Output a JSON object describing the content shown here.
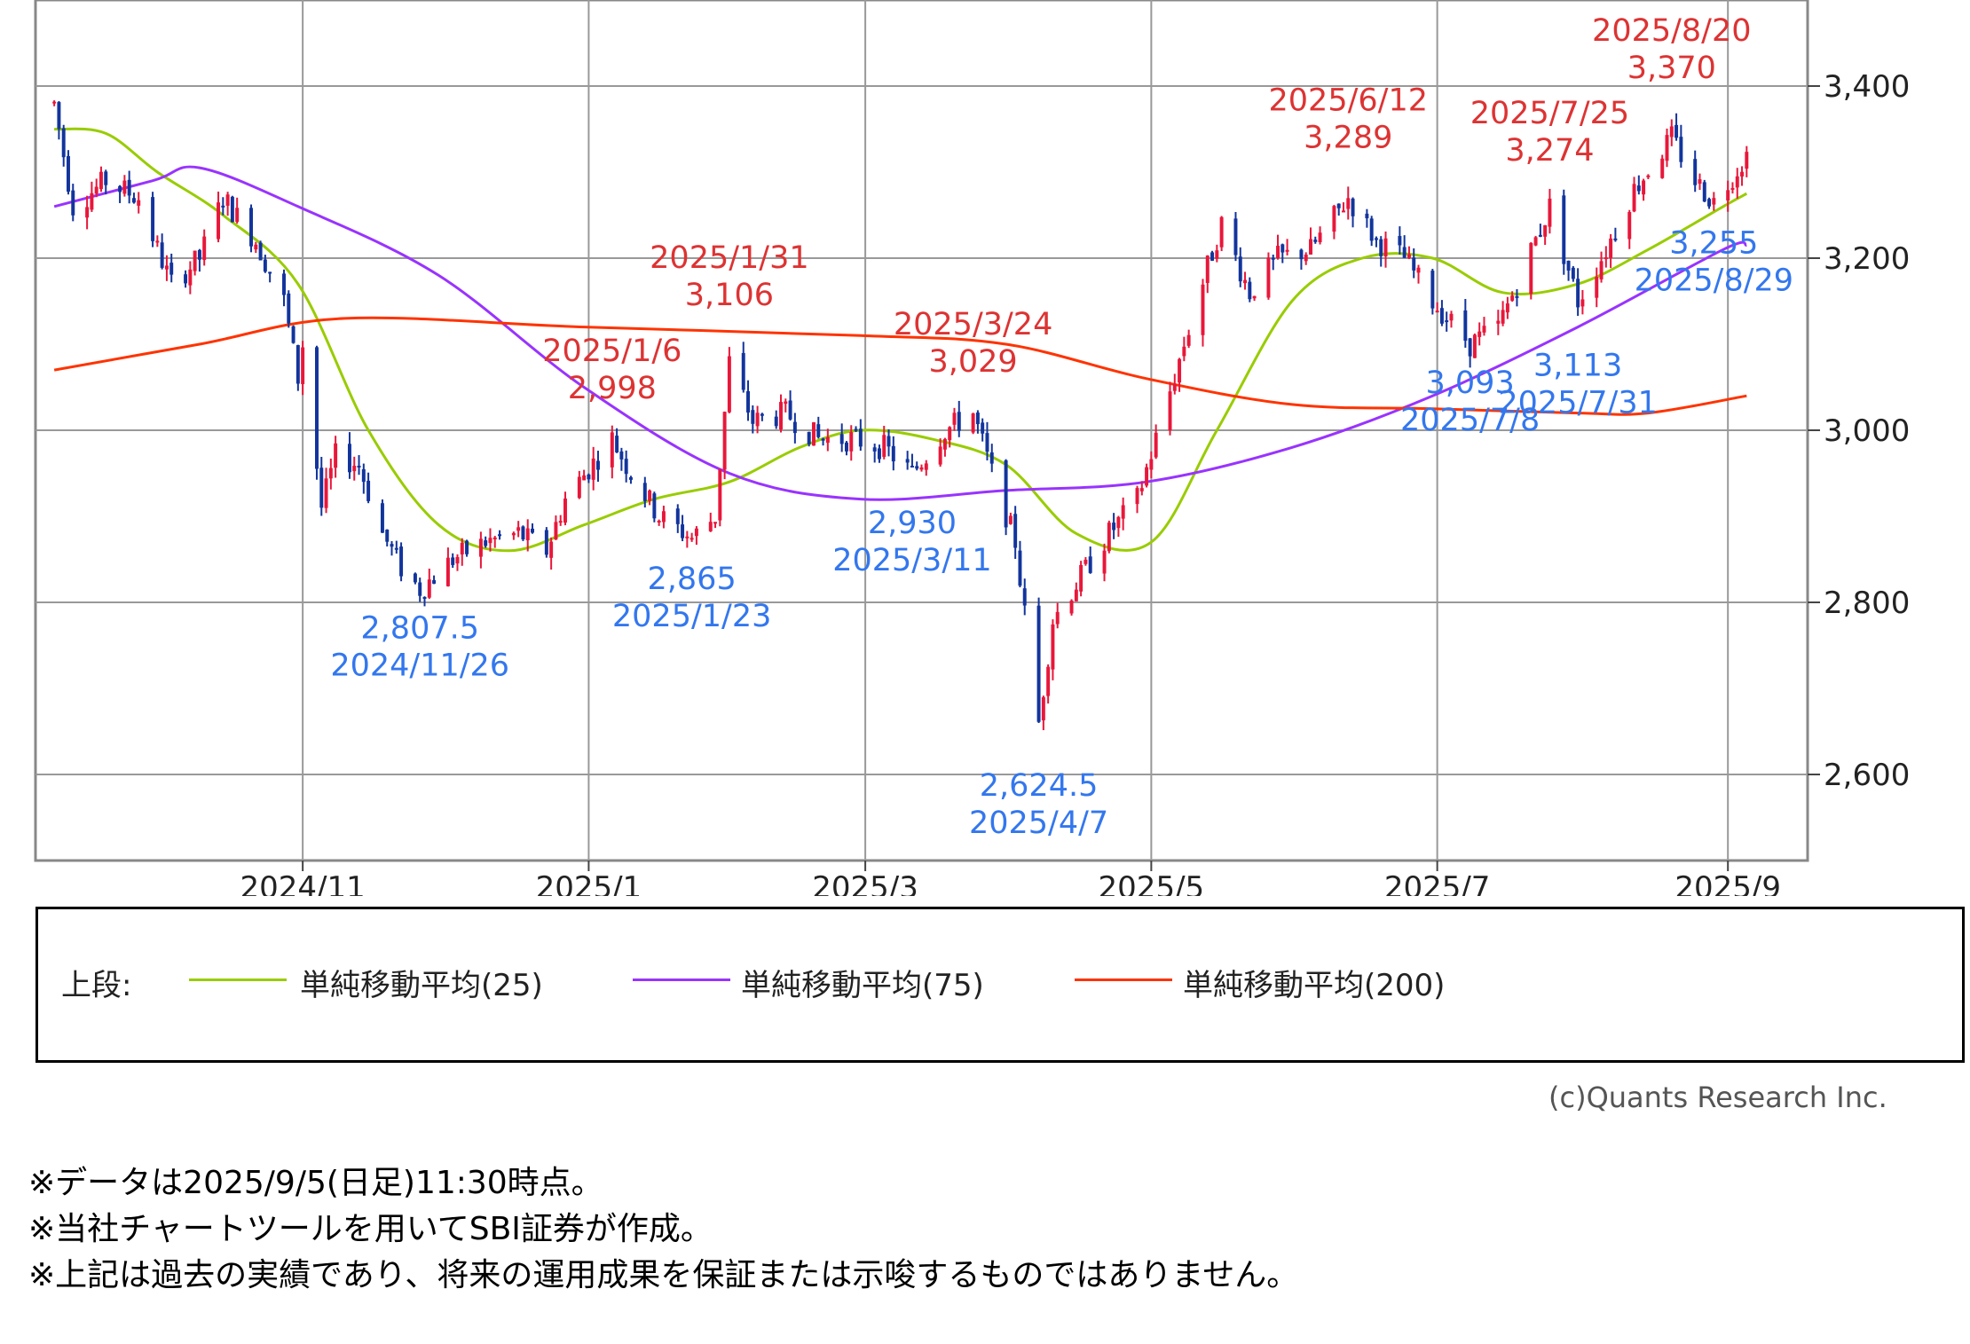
{
  "chart_data": {
    "type": "candlestick",
    "ylim": [
      2500,
      3500
    ],
    "yticks": [
      {
        "value": 2600,
        "label": "2,600"
      },
      {
        "value": 2800,
        "label": "2,800"
      },
      {
        "value": 3000,
        "label": "3,000"
      },
      {
        "value": 3200,
        "label": "3,200"
      },
      {
        "value": 3400,
        "label": "3,400"
      }
    ],
    "xlim": [
      "2024-09-05",
      "2025-09-18"
    ],
    "xticks": [
      {
        "date": "2024-11-01",
        "label": "2024/11"
      },
      {
        "date": "2025-01-01",
        "label": "2025/1"
      },
      {
        "date": "2025-03-01",
        "label": "2025/3"
      },
      {
        "date": "2025-05-01",
        "label": "2025/5"
      },
      {
        "date": "2025-07-01",
        "label": "2025/7"
      },
      {
        "date": "2025-09-01",
        "label": "2025/9"
      }
    ],
    "grid": true,
    "price_path": [
      [
        "2024-09-09",
        3380
      ],
      [
        "2024-09-13",
        3260
      ],
      [
        "2024-09-20",
        3290
      ],
      [
        "2024-09-27",
        3270
      ],
      [
        "2024-10-01",
        3210
      ],
      [
        "2024-10-04",
        3170
      ],
      [
        "2024-10-10",
        3200
      ],
      [
        "2024-10-15",
        3270
      ],
      [
        "2024-10-22",
        3220
      ],
      [
        "2024-10-28",
        3150
      ],
      [
        "2024-10-31",
        3060
      ],
      [
        "2024-11-01",
        3100
      ],
      [
        "2024-11-05",
        2910
      ],
      [
        "2024-11-08",
        2970
      ],
      [
        "2024-11-13",
        2960
      ],
      [
        "2024-11-18",
        2880
      ],
      [
        "2024-11-22",
        2840
      ],
      [
        "2024-11-26",
        2815
      ],
      [
        "2024-12-03",
        2850
      ],
      [
        "2024-12-10",
        2870
      ],
      [
        "2024-12-17",
        2880
      ],
      [
        "2024-12-23",
        2860
      ],
      [
        "2024-12-27",
        2920
      ],
      [
        "2025-01-06",
        2990
      ],
      [
        "2025-01-10",
        2950
      ],
      [
        "2025-01-16",
        2900
      ],
      [
        "2025-01-23",
        2875
      ],
      [
        "2025-01-28",
        2900
      ],
      [
        "2025-01-31",
        3080
      ],
      [
        "2025-02-05",
        3010
      ],
      [
        "2025-02-12",
        3020
      ],
      [
        "2025-02-19",
        2990
      ],
      [
        "2025-02-26",
        2990
      ],
      [
        "2025-03-05",
        2980
      ],
      [
        "2025-03-11",
        2950
      ],
      [
        "2025-03-18",
        3000
      ],
      [
        "2025-03-24",
        3020
      ],
      [
        "2025-03-28",
        2950
      ],
      [
        "2025-04-02",
        2870
      ],
      [
        "2025-04-07",
        2660
      ],
      [
        "2025-04-10",
        2780
      ],
      [
        "2025-04-16",
        2830
      ],
      [
        "2025-04-22",
        2880
      ],
      [
        "2025-04-28",
        2920
      ],
      [
        "2025-05-02",
        2990
      ],
      [
        "2025-05-08",
        3100
      ],
      [
        "2025-05-13",
        3190
      ],
      [
        "2025-05-16",
        3240
      ],
      [
        "2025-05-22",
        3160
      ],
      [
        "2025-05-28",
        3200
      ],
      [
        "2025-06-04",
        3210
      ],
      [
        "2025-06-12",
        3270
      ],
      [
        "2025-06-18",
        3220
      ],
      [
        "2025-06-24",
        3200
      ],
      [
        "2025-06-30",
        3150
      ],
      [
        "2025-07-08",
        3100
      ],
      [
        "2025-07-14",
        3120
      ],
      [
        "2025-07-18",
        3170
      ],
      [
        "2025-07-25",
        3260
      ],
      [
        "2025-07-31",
        3150
      ],
      [
        "2025-08-06",
        3210
      ],
      [
        "2025-08-12",
        3280
      ],
      [
        "2025-08-20",
        3340
      ],
      [
        "2025-08-25",
        3290
      ],
      [
        "2025-08-29",
        3265
      ],
      [
        "2025-09-05",
        3320
      ]
    ],
    "series": [
      {
        "name": "単純移動平均(25)",
        "color": "#99cc00",
        "points": [
          [
            "2024-09-09",
            3350
          ],
          [
            "2024-09-20",
            3345
          ],
          [
            "2024-10-01",
            3300
          ],
          [
            "2024-10-15",
            3250
          ],
          [
            "2024-10-31",
            3170
          ],
          [
            "2024-11-15",
            3000
          ],
          [
            "2024-11-30",
            2890
          ],
          [
            "2024-12-15",
            2860
          ],
          [
            "2024-12-31",
            2890
          ],
          [
            "2025-01-15",
            2920
          ],
          [
            "2025-01-31",
            2940
          ],
          [
            "2025-02-15",
            2980
          ],
          [
            "2025-02-28",
            3000
          ],
          [
            "2025-03-15",
            2990
          ],
          [
            "2025-03-31",
            2960
          ],
          [
            "2025-04-15",
            2880
          ],
          [
            "2025-05-01",
            2870
          ],
          [
            "2025-05-15",
            3000
          ],
          [
            "2025-05-31",
            3150
          ],
          [
            "2025-06-15",
            3200
          ],
          [
            "2025-06-30",
            3200
          ],
          [
            "2025-07-15",
            3160
          ],
          [
            "2025-07-31",
            3170
          ],
          [
            "2025-08-15",
            3210
          ],
          [
            "2025-08-31",
            3260
          ],
          [
            "2025-09-05",
            3275
          ]
        ]
      },
      {
        "name": "単純移動平均(75)",
        "color": "#9933ff",
        "points": [
          [
            "2024-09-09",
            3260
          ],
          [
            "2024-09-30",
            3290
          ],
          [
            "2024-10-10",
            3305
          ],
          [
            "2024-10-31",
            3260
          ],
          [
            "2024-11-30",
            3180
          ],
          [
            "2024-12-31",
            3050
          ],
          [
            "2025-01-31",
            2950
          ],
          [
            "2025-02-28",
            2920
          ],
          [
            "2025-03-31",
            2930
          ],
          [
            "2025-04-30",
            2940
          ],
          [
            "2025-05-31",
            2980
          ],
          [
            "2025-06-30",
            3040
          ],
          [
            "2025-07-31",
            3120
          ],
          [
            "2025-08-31",
            3210
          ],
          [
            "2025-09-05",
            3215
          ]
        ]
      },
      {
        "name": "単純移動平均(200)",
        "color": "#ff3300",
        "points": [
          [
            "2024-09-09",
            3070
          ],
          [
            "2024-10-10",
            3100
          ],
          [
            "2024-11-10",
            3130
          ],
          [
            "2024-12-31",
            3120
          ],
          [
            "2025-02-28",
            3110
          ],
          [
            "2025-03-31",
            3100
          ],
          [
            "2025-04-30",
            3060
          ],
          [
            "2025-05-31",
            3030
          ],
          [
            "2025-06-30",
            3025
          ],
          [
            "2025-07-31",
            3020
          ],
          [
            "2025-08-15",
            3020
          ],
          [
            "2025-09-05",
            3040
          ]
        ]
      }
    ],
    "annotations": [
      {
        "kind": "high",
        "date": "2025/1/6",
        "value": "2,998",
        "at": [
          "2025-01-06",
          2998
        ]
      },
      {
        "kind": "high",
        "date": "2025/1/31",
        "value": "3,106",
        "at": [
          "2025-01-31",
          3106
        ]
      },
      {
        "kind": "high",
        "date": "2025/3/24",
        "value": "3,029",
        "at": [
          "2025-03-24",
          3029
        ]
      },
      {
        "kind": "high",
        "date": "2025/6/12",
        "value": "3,289",
        "at": [
          "2025-06-12",
          3289
        ]
      },
      {
        "kind": "high",
        "date": "2025/7/25",
        "value": "3,274",
        "at": [
          "2025-07-25",
          3274
        ]
      },
      {
        "kind": "high",
        "date": "2025/8/20",
        "value": "3,370",
        "at": [
          "2025-08-20",
          3370
        ]
      },
      {
        "kind": "low",
        "date": "2024/11/26",
        "value": "2,807.5",
        "at": [
          "2024-11-26",
          2807.5
        ]
      },
      {
        "kind": "low",
        "date": "2025/1/23",
        "value": "2,865",
        "at": [
          "2025-01-23",
          2865
        ]
      },
      {
        "kind": "low",
        "date": "2025/3/11",
        "value": "2,930",
        "at": [
          "2025-03-11",
          2930
        ]
      },
      {
        "kind": "low",
        "date": "2025/4/7",
        "value": "2,624.5",
        "at": [
          "2025-04-07",
          2624.5
        ]
      },
      {
        "kind": "low",
        "date": "2025/7/8",
        "value": "3,093",
        "at": [
          "2025-07-08",
          3093
        ]
      },
      {
        "kind": "low",
        "date": "2025/7/31",
        "value": "3,113",
        "at": [
          "2025-07-31",
          3113
        ]
      },
      {
        "kind": "low",
        "date": "2025/8/29",
        "value": "3,255",
        "at": [
          "2025-08-29",
          3255
        ]
      }
    ]
  },
  "legend": {
    "prefix": "上段:",
    "items": [
      {
        "label": "単純移動平均(25)",
        "color": "#99cc00"
      },
      {
        "label": "単純移動平均(75)",
        "color": "#9933ff"
      },
      {
        "label": "単純移動平均(200)",
        "color": "#ff3300"
      }
    ]
  },
  "copyright": "(c)Quants Research Inc.",
  "notes": [
    "※データは2025/9/5(日足)11:30時点。",
    "※当社チャートツールを用いてSBI証券が作成。",
    "※上記は過去の実績であり、将来の運用成果を保証または示唆するものではありません。"
  ],
  "colors": {
    "up": "#e8173a",
    "down": "#12349c",
    "high_label": "#dd3333",
    "low_label": "#3377ee"
  }
}
